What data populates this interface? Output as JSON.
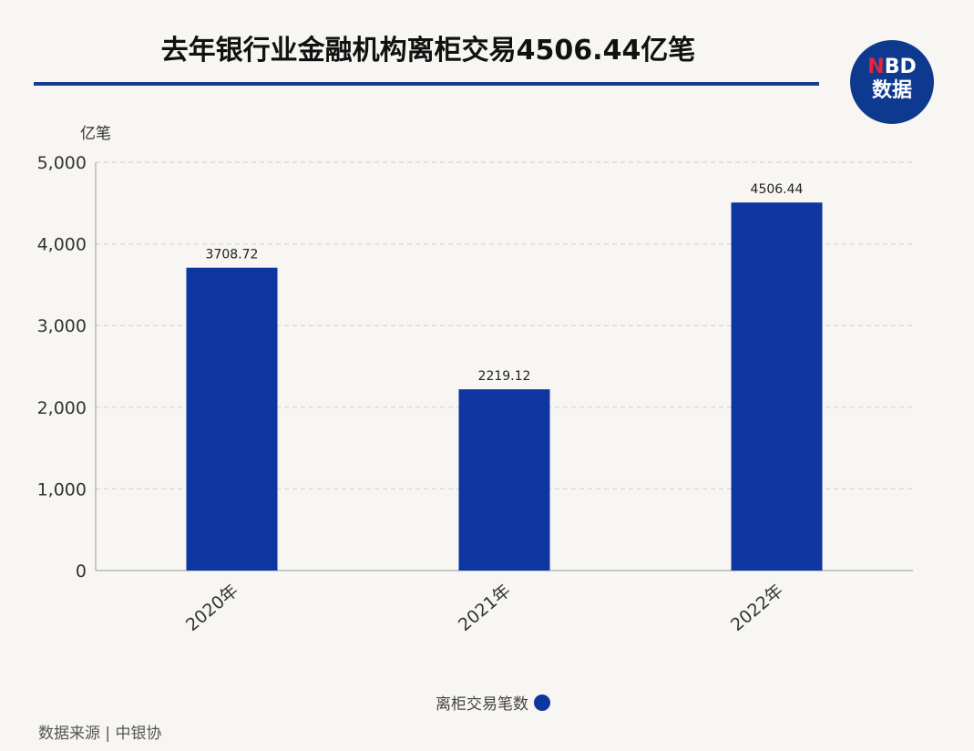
{
  "title": "去年银行业金融机构离柜交易4506.44亿笔",
  "logo": {
    "line1_accent": "N",
    "line1_rest": "BD",
    "line2": "数据"
  },
  "source": "数据来源 | 中银协",
  "colors": {
    "bar": "#0d36a0",
    "rule": "#1a3c8c",
    "logo_bg": "#0d3a8e"
  },
  "chart_data": {
    "type": "bar",
    "ylabel": "亿笔",
    "categories": [
      "2020年",
      "2021年",
      "2022年"
    ],
    "series": [
      {
        "name": "离柜交易笔数",
        "values": [
          3708.72,
          2219.12,
          4506.44
        ]
      }
    ],
    "data_labels": [
      "3708.72",
      "2219.12",
      "4506.44"
    ],
    "ylim": [
      0,
      5000
    ],
    "yticks": [
      0,
      1000,
      2000,
      3000,
      4000,
      5000
    ],
    "ytick_labels": [
      "0",
      "1,000",
      "2,000",
      "3,000",
      "4,000",
      "5,000"
    ],
    "grid": "horizontal dashed",
    "legend": "bottom-center"
  }
}
